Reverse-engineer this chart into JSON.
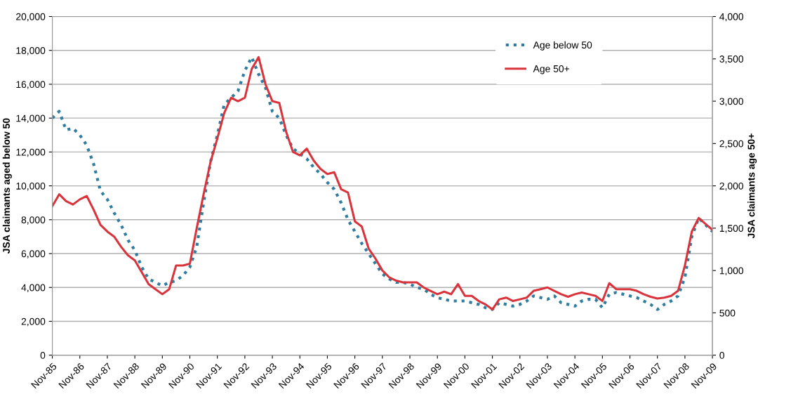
{
  "chart_data": {
    "type": "line",
    "ylabel": "JSA claimants aged below 50",
    "y2label": "JSA claimants age 50+",
    "categories": [
      "Nov-85",
      null,
      null,
      null,
      "Nov-86",
      null,
      null,
      null,
      "Nov-87",
      null,
      null,
      null,
      "Nov-88",
      null,
      null,
      null,
      "Nov-89",
      null,
      null,
      null,
      "Nov-90",
      null,
      null,
      null,
      "Nov-91",
      null,
      null,
      null,
      "Nov-92",
      null,
      null,
      null,
      "Nov-93",
      null,
      null,
      null,
      "Nov-94",
      null,
      null,
      null,
      "Nov-95",
      null,
      null,
      null,
      "Nov-96",
      null,
      null,
      null,
      "Nov-97",
      null,
      null,
      null,
      "Nov-98",
      null,
      null,
      null,
      "Nov-99",
      null,
      null,
      null,
      "Nov-00",
      null,
      null,
      null,
      "Nov-01",
      null,
      null,
      null,
      "Nov-02",
      null,
      null,
      null,
      "Nov-03",
      null,
      null,
      null,
      "Nov-04",
      null,
      null,
      null,
      "Nov-05",
      null,
      null,
      null,
      "Nov-06",
      null,
      null,
      null,
      "Nov-07",
      null,
      null,
      null,
      "Nov-08",
      null,
      null,
      null,
      "Nov-09"
    ],
    "series": [
      {
        "name": "Age below 50",
        "color": "#2f7ea0",
        "line_style": "dotted",
        "axis": "y",
        "values": [
          14000,
          14400,
          13300,
          13400,
          13000,
          12400,
          11300,
          9700,
          9200,
          8400,
          7700,
          6800,
          6200,
          5200,
          4500,
          4300,
          4100,
          4300,
          4400,
          4700,
          5200,
          6400,
          9000,
          11400,
          13000,
          14800,
          15200,
          15600,
          16800,
          17600,
          16600,
          15800,
          14400,
          14000,
          13000,
          12200,
          11900,
          11600,
          11100,
          10700,
          10200,
          9800,
          9000,
          8000,
          7300,
          6600,
          6000,
          5400,
          4800,
          4500,
          4300,
          4300,
          4200,
          4000,
          3900,
          3600,
          3400,
          3300,
          3200,
          3200,
          3200,
          3100,
          3000,
          2800,
          2700,
          3100,
          3000,
          2900,
          3000,
          3200,
          3500,
          3400,
          3300,
          3500,
          3100,
          3000,
          2900,
          3200,
          3300,
          3300,
          2800,
          3600,
          3700,
          3600,
          3500,
          3400,
          3200,
          3000,
          2700,
          3000,
          3200,
          3500,
          4600,
          7000,
          8100,
          7700,
          7300
        ]
      },
      {
        "name": "Age 50+",
        "color": "#d9343c",
        "line_style": "solid",
        "axis": "y2",
        "values": [
          1760,
          1900,
          1820,
          1780,
          1840,
          1880,
          1720,
          1540,
          1460,
          1400,
          1280,
          1180,
          1120,
          980,
          840,
          780,
          720,
          780,
          1060,
          1060,
          1080,
          1500,
          1900,
          2280,
          2560,
          2860,
          3040,
          3000,
          3040,
          3380,
          3520,
          3200,
          3000,
          2980,
          2640,
          2400,
          2360,
          2440,
          2300,
          2200,
          2140,
          2160,
          1960,
          1920,
          1580,
          1520,
          1260,
          1140,
          1000,
          920,
          880,
          860,
          860,
          860,
          800,
          760,
          720,
          750,
          720,
          840,
          700,
          700,
          640,
          600,
          540,
          660,
          680,
          640,
          660,
          680,
          760,
          780,
          800,
          760,
          720,
          690,
          720,
          740,
          720,
          700,
          640,
          850,
          780,
          780,
          780,
          760,
          720,
          690,
          670,
          680,
          700,
          760,
          1060,
          1460,
          1620,
          1550,
          1480
        ]
      }
    ],
    "ylim": [
      0,
      20000
    ],
    "yticks": [
      {
        "value": 0,
        "label": "0"
      },
      {
        "value": 2000,
        "label": "2,000"
      },
      {
        "value": 4000,
        "label": "4,000"
      },
      {
        "value": 6000,
        "label": "6,000"
      },
      {
        "value": 8000,
        "label": "8,000"
      },
      {
        "value": 10000,
        "label": "10,000"
      },
      {
        "value": 12000,
        "label": "12,000"
      },
      {
        "value": 14000,
        "label": "14,000"
      },
      {
        "value": 16000,
        "label": "16,000"
      },
      {
        "value": 18000,
        "label": "18,000"
      },
      {
        "value": 20000,
        "label": "20,000"
      }
    ],
    "y2lim": [
      0,
      4000
    ],
    "y2ticks": [
      {
        "value": 0,
        "label": "0"
      },
      {
        "value": 500,
        "label": "500"
      },
      {
        "value": 1000,
        "label": "1,000"
      },
      {
        "value": 1500,
        "label": "1,500"
      },
      {
        "value": 2000,
        "label": "2,000"
      },
      {
        "value": 2500,
        "label": "2,500"
      },
      {
        "value": 3000,
        "label": "3,000"
      },
      {
        "value": 3500,
        "label": "3,500"
      },
      {
        "value": 4000,
        "label": "4,000"
      }
    ],
    "grid": "y",
    "legend": "top right",
    "marker": "none"
  }
}
